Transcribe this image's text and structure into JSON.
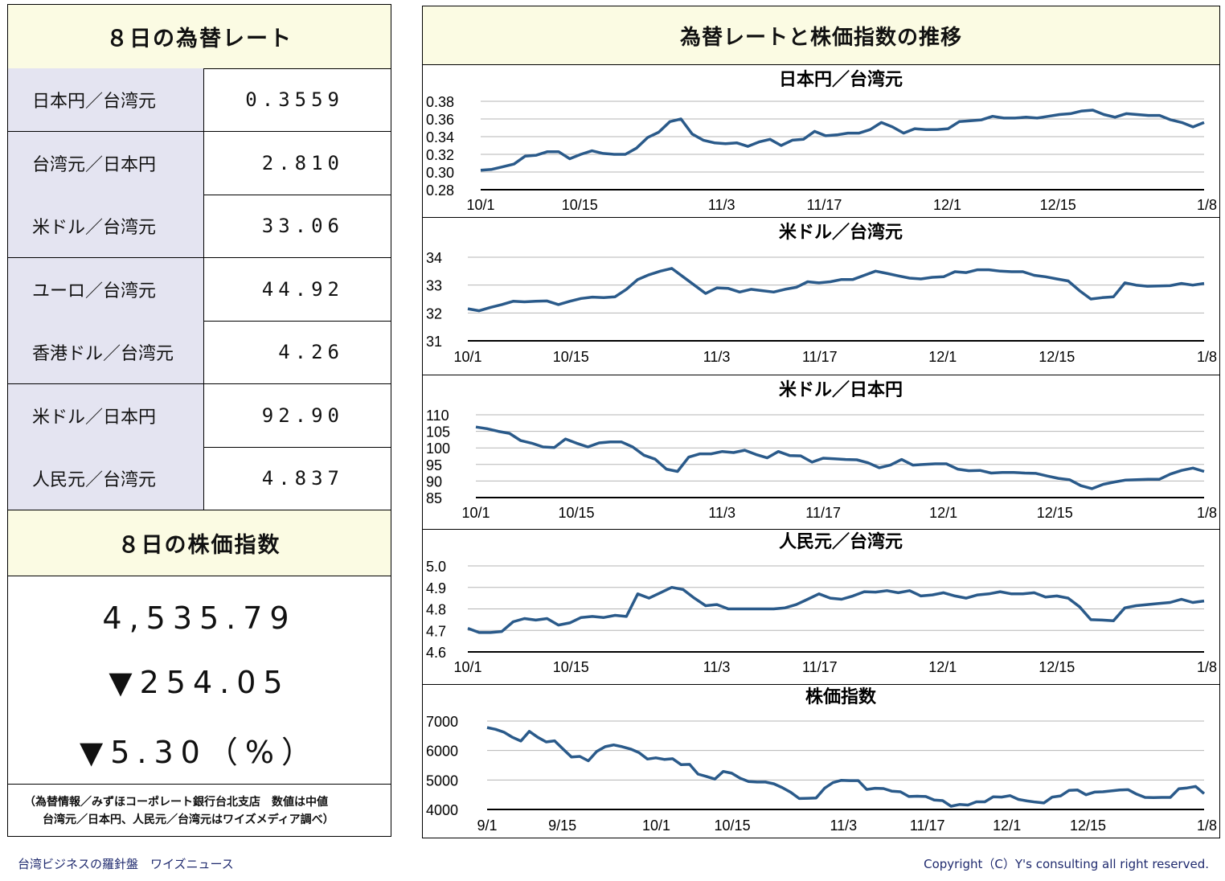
{
  "left": {
    "rates_title": "８日の為替レート",
    "rates": [
      {
        "name": "日本円／台湾元",
        "value": "0.3559"
      },
      {
        "name": "台湾元／日本円",
        "value": "2.810"
      },
      {
        "name": "米ドル／台湾元",
        "value": "33.06"
      },
      {
        "name": "ユーロ／台湾元",
        "value": "44.92"
      },
      {
        "name": "香港ドル／台湾元",
        "value": "4.26"
      },
      {
        "name": "米ドル／日本円",
        "value": "92.90"
      },
      {
        "name": "人民元／台湾元",
        "value": "4.837"
      }
    ],
    "stock_title": "８日の株価指数",
    "stock_value": "4,535.79",
    "stock_change": "▼254.05",
    "stock_pct": "▼5.30（%）",
    "note_line1": "（為替情報／みずほコーポレート銀行台北支店　数値は中値",
    "note_line2": "台湾元／日本円、人民元／台湾元はワイズメディア調べ）"
  },
  "right": {
    "title": "為替レートと株価指数の推移"
  },
  "footer": {
    "left": "台湾ビジネスの羅針盤　ワイズニュース",
    "right": "Copyright（C）Y's consulting all right reserved."
  },
  "colors": {
    "line": "#2a5a8a",
    "header_bg": "#fbfbe3",
    "name_bg": "#e4e4f1",
    "footer_text": "#1f2a6e"
  },
  "chart_data": [
    {
      "type": "line",
      "title": "日本円／台湾元",
      "x_tick_labels": [
        "10/1",
        "10/15",
        "11/3",
        "11/17",
        "12/1",
        "12/15",
        "1/8"
      ],
      "y_tick_labels": [
        "0.38",
        "0.36",
        "0.34",
        "0.32",
        "0.30",
        "0.28"
      ],
      "ylim": [
        0.28,
        0.38
      ],
      "grid": true,
      "values": [
        0.302,
        0.303,
        0.306,
        0.309,
        0.318,
        0.319,
        0.323,
        0.323,
        0.315,
        0.32,
        0.324,
        0.321,
        0.32,
        0.32,
        0.327,
        0.339,
        0.345,
        0.357,
        0.36,
        0.343,
        0.336,
        0.333,
        0.332,
        0.333,
        0.329,
        0.334,
        0.337,
        0.33,
        0.336,
        0.337,
        0.346,
        0.341,
        0.342,
        0.344,
        0.344,
        0.348,
        0.356,
        0.351,
        0.344,
        0.349,
        0.348,
        0.348,
        0.349,
        0.357,
        0.358,
        0.359,
        0.363,
        0.361,
        0.361,
        0.362,
        0.361,
        0.363,
        0.365,
        0.366,
        0.369,
        0.37,
        0.365,
        0.362,
        0.366,
        0.365,
        0.364,
        0.364,
        0.359,
        0.356,
        0.351,
        0.356
      ]
    },
    {
      "type": "line",
      "title": "米ドル／台湾元",
      "x_tick_labels": [
        "10/1",
        "10/15",
        "11/3",
        "11/17",
        "12/1",
        "12/15",
        "1/8"
      ],
      "y_tick_labels": [
        "34",
        "33",
        "32",
        "31"
      ],
      "ylim": [
        31,
        34
      ],
      "grid": true,
      "values": [
        32.15,
        32.08,
        32.2,
        32.3,
        32.42,
        32.4,
        32.42,
        32.43,
        32.3,
        32.42,
        32.52,
        32.57,
        32.55,
        32.58,
        32.85,
        33.2,
        33.37,
        33.5,
        33.6,
        33.3,
        33.0,
        32.7,
        32.9,
        32.88,
        32.75,
        32.85,
        32.8,
        32.75,
        32.85,
        32.92,
        33.12,
        33.08,
        33.12,
        33.2,
        33.2,
        33.35,
        33.5,
        33.42,
        33.33,
        33.25,
        33.22,
        33.28,
        33.3,
        33.48,
        33.45,
        33.55,
        33.55,
        33.5,
        33.48,
        33.48,
        33.35,
        33.3,
        33.22,
        33.15,
        32.8,
        32.5,
        32.55,
        32.58,
        33.08,
        33.0,
        32.96,
        32.97,
        32.98,
        33.06,
        33.0,
        33.06
      ]
    },
    {
      "type": "line",
      "title": "米ドル／日本円",
      "x_tick_labels": [
        "10/1",
        "10/15",
        "11/3",
        "11/17",
        "12/1",
        "12/15",
        "1/8"
      ],
      "y_tick_labels": [
        "110",
        "105",
        "100",
        "95",
        "90",
        "85"
      ],
      "ylim": [
        85,
        110
      ],
      "grid": true,
      "values": [
        106.3,
        105.8,
        105,
        104.4,
        102.2,
        101.4,
        100.3,
        100.1,
        102.7,
        101.4,
        100.3,
        101.5,
        101.8,
        101.8,
        100.3,
        97.8,
        96.6,
        93.6,
        92.9,
        97.2,
        98.2,
        98.2,
        98.9,
        98.6,
        99.3,
        98,
        97,
        98.9,
        97.7,
        97.6,
        95.7,
        96.9,
        96.7,
        96.5,
        96.4,
        95.5,
        94,
        94.8,
        96.5,
        94.8,
        95,
        95.2,
        95.2,
        93.6,
        93.1,
        93.2,
        92.4,
        92.6,
        92.6,
        92.4,
        92.3,
        91.5,
        90.8,
        90.4,
        88.6,
        87.7,
        89,
        89.7,
        90.3,
        90.4,
        90.5,
        90.5,
        92.1,
        93.2,
        93.9,
        92.9
      ]
    },
    {
      "type": "line",
      "title": "人民元／台湾元",
      "x_tick_labels": [
        "10/1",
        "10/15",
        "11/3",
        "11/17",
        "12/1",
        "12/15",
        "1/8"
      ],
      "y_tick_labels": [
        "5.0",
        "4.9",
        "4.8",
        "4.7",
        "4.6"
      ],
      "ylim": [
        4.6,
        5.0
      ],
      "grid": true,
      "values": [
        4.71,
        4.69,
        4.69,
        4.695,
        4.74,
        4.755,
        4.748,
        4.755,
        4.725,
        4.735,
        4.76,
        4.765,
        4.76,
        4.77,
        4.765,
        4.87,
        4.85,
        4.875,
        4.9,
        4.89,
        4.85,
        4.815,
        4.82,
        4.8,
        4.8,
        4.8,
        4.8,
        4.8,
        4.805,
        4.82,
        4.845,
        4.87,
        4.85,
        4.845,
        4.86,
        4.88,
        4.878,
        4.885,
        4.875,
        4.885,
        4.86,
        4.865,
        4.875,
        4.86,
        4.85,
        4.865,
        4.87,
        4.88,
        4.87,
        4.87,
        4.875,
        4.855,
        4.86,
        4.85,
        4.81,
        4.75,
        4.748,
        4.745,
        4.805,
        4.815,
        4.82,
        4.825,
        4.83,
        4.845,
        4.83,
        4.837
      ]
    },
    {
      "type": "line",
      "title": "株価指数",
      "x_tick_labels": [
        "9/1",
        "9/15",
        "10/1",
        "10/15",
        "11/3",
        "11/17",
        "12/1",
        "12/15",
        "1/8"
      ],
      "y_tick_labels": [
        "7000",
        "6000",
        "5000",
        "4000"
      ],
      "ylim": [
        4000,
        7000
      ],
      "grid": true,
      "values": [
        6780,
        6720,
        6620,
        6450,
        6320,
        6650,
        6450,
        6290,
        6330,
        6050,
        5780,
        5800,
        5650,
        5970,
        6130,
        6190,
        6130,
        6050,
        5930,
        5710,
        5750,
        5700,
        5720,
        5520,
        5530,
        5200,
        5120,
        5030,
        5290,
        5230,
        5060,
        4950,
        4930,
        4930,
        4870,
        4740,
        4580,
        4370,
        4380,
        4390,
        4720,
        4910,
        4990,
        4980,
        4980,
        4680,
        4720,
        4710,
        4620,
        4600,
        4440,
        4450,
        4440,
        4320,
        4300,
        4110,
        4170,
        4150,
        4260,
        4260,
        4430,
        4420,
        4470,
        4340,
        4290,
        4250,
        4220,
        4420,
        4460,
        4650,
        4660,
        4500,
        4590,
        4600,
        4630,
        4660,
        4670,
        4520,
        4410,
        4400,
        4410,
        4410,
        4700,
        4730,
        4780,
        4536
      ]
    }
  ]
}
